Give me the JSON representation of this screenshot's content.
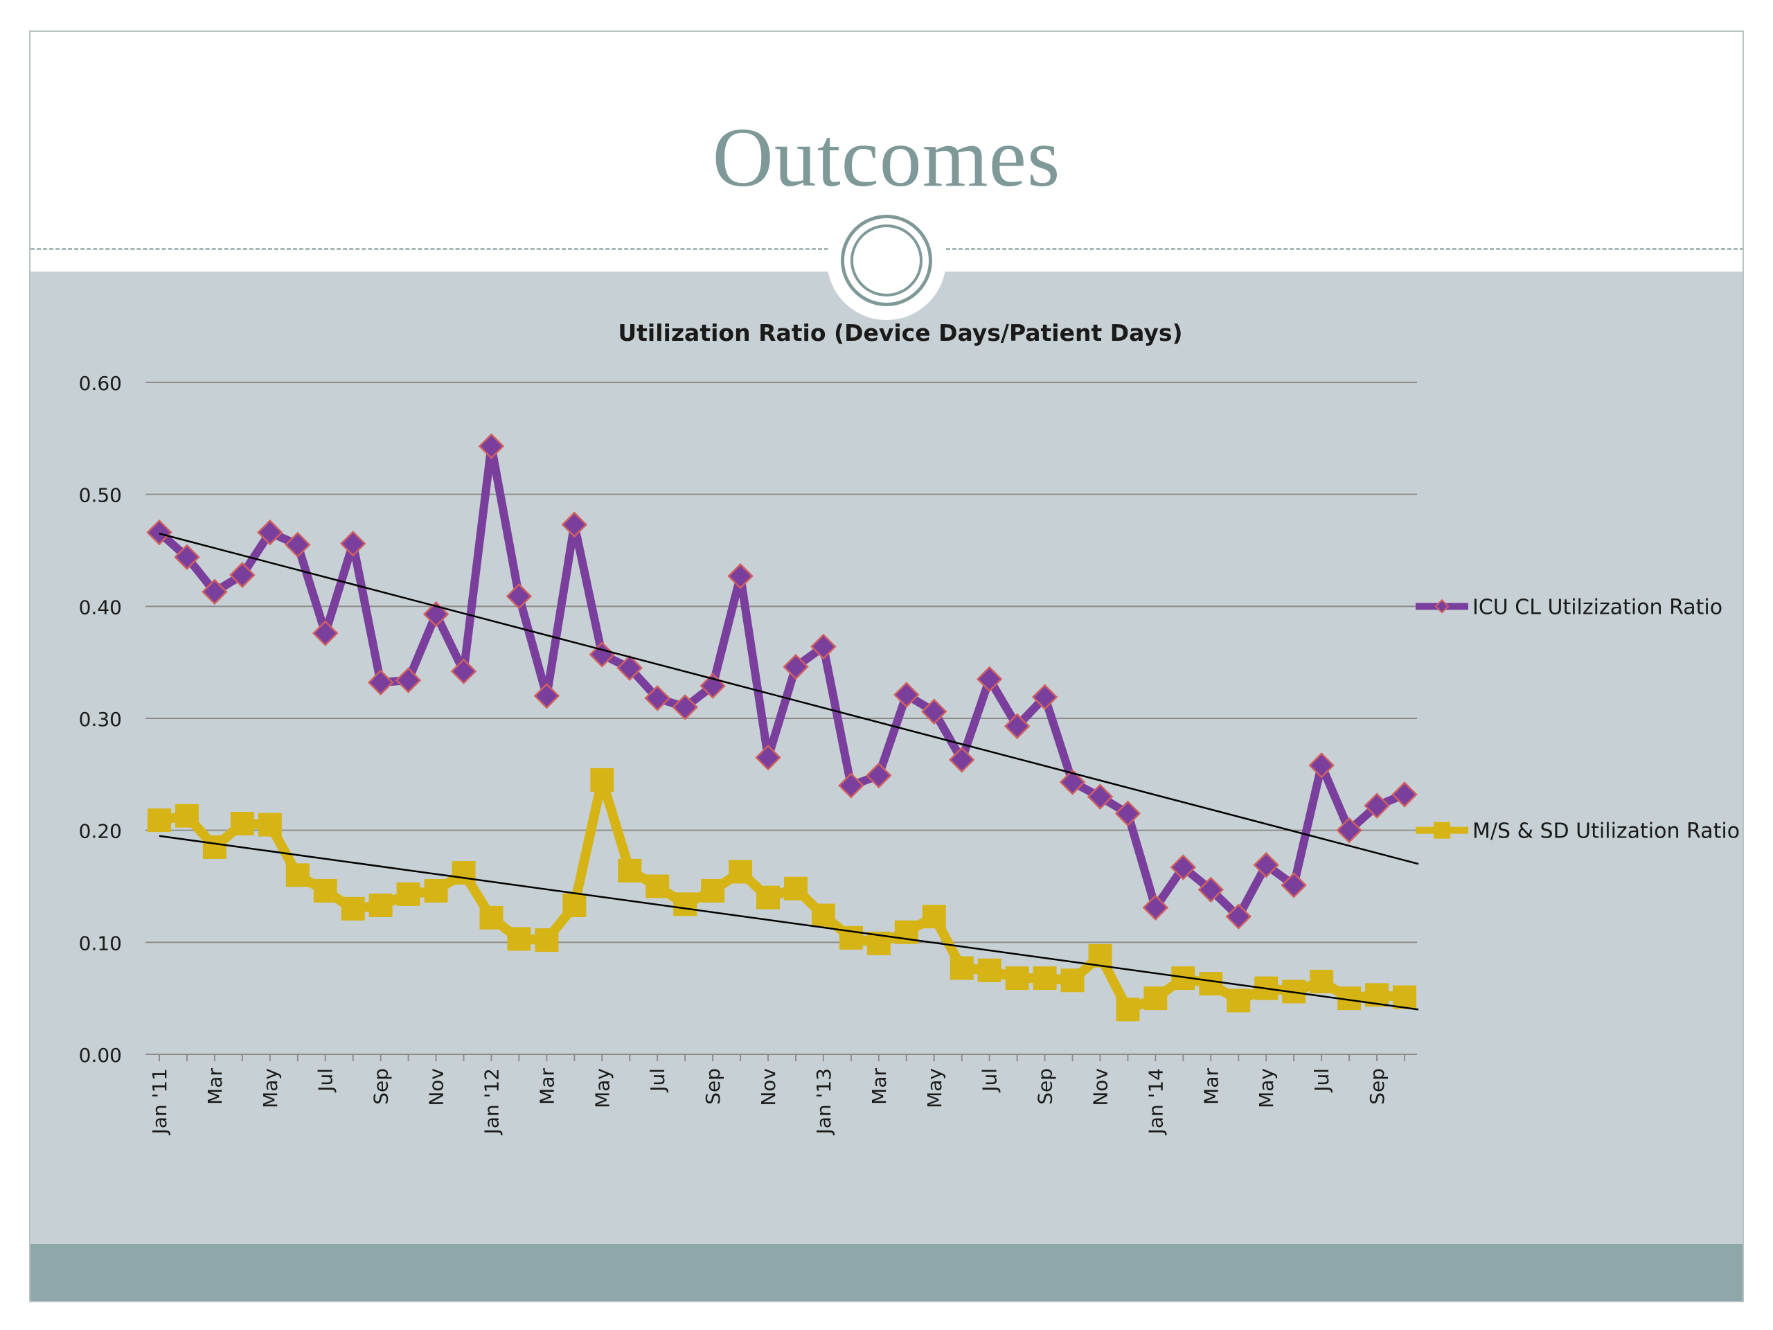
{
  "slide": {
    "title": "Outcomes"
  },
  "colors": {
    "title": "#7e9998",
    "content_bg": "#c7d1d5",
    "footer_bg": "#8ea8a9",
    "gridline": "#8c8c8c",
    "icu_line": "#7a3f9d",
    "icu_marker_edge": "#d06060",
    "ms_line": "#d6b415",
    "trend": "#000000"
  },
  "chart_data": {
    "type": "line",
    "title": "Utilization Ratio (Device Days/Patient Days)",
    "xlabel": "",
    "ylabel": "",
    "ylim": [
      0,
      0.6
    ],
    "yticks": [
      "0.00",
      "0.10",
      "0.20",
      "0.30",
      "0.40",
      "0.50",
      "0.60"
    ],
    "grid": true,
    "legend_position": "right",
    "x": [
      "Jan 2011",
      "Feb 2011",
      "Mar 2011",
      "Apr 2011",
      "May 2011",
      "Jun 2011",
      "Jul 2011",
      "Aug 2011",
      "Sep 2011",
      "Oct 2011",
      "Nov 2011",
      "Dec 2011",
      "Jan 2012",
      "Feb 2012",
      "Mar 2012",
      "Apr 2012",
      "May 2012",
      "Jun 2012",
      "Jul 2012",
      "Aug 2012",
      "Sep 2012",
      "Oct 2012",
      "Nov 2012",
      "Dec 2012",
      "Jan 2013",
      "Feb 2013",
      "Mar 2013",
      "Apr 2013",
      "May 2013",
      "Jun 2013",
      "Jul 2013",
      "Aug 2013",
      "Sep 2013",
      "Oct 2013",
      "Nov 2013",
      "Dec 2013",
      "Jan 2014",
      "Feb 2014",
      "Mar 2014",
      "Apr 2014",
      "May 2014",
      "Jun 2014",
      "Jul 2014",
      "Aug 2014",
      "Sep 2014",
      "Oct 2014"
    ],
    "xtick_labels": [
      "Jan '11",
      "",
      "Mar",
      "",
      "May",
      "",
      "Jul",
      "",
      "Sep",
      "",
      "Nov",
      "",
      "Jan '12",
      "",
      "Mar",
      "",
      "May",
      "",
      "Jul",
      "",
      "Sep",
      "",
      "Nov",
      "",
      "Jan '13",
      "",
      "Mar",
      "",
      "May",
      "",
      "Jul",
      "",
      "Sep",
      "",
      "Nov",
      "",
      "Jan '14",
      "",
      "Mar",
      "",
      "May",
      "",
      "Jul",
      "",
      "Sep",
      ""
    ],
    "series": [
      {
        "name": "ICU CL Utilzization Ratio",
        "marker": "diamond",
        "values": [
          0.466,
          0.444,
          0.413,
          0.428,
          0.466,
          0.455,
          0.376,
          0.456,
          0.332,
          0.334,
          0.393,
          0.342,
          0.543,
          0.409,
          0.32,
          0.473,
          0.357,
          0.345,
          0.318,
          0.31,
          0.329,
          0.427,
          0.265,
          0.346,
          0.364,
          0.24,
          0.249,
          0.321,
          0.306,
          0.263,
          0.335,
          0.293,
          0.319,
          0.243,
          0.23,
          0.215,
          0.131,
          0.167,
          0.147,
          0.123,
          0.169,
          0.151,
          0.258,
          0.2,
          0.222,
          0.232
        ]
      },
      {
        "name": "M/S & SD Utilization Ratio",
        "marker": "square",
        "values": [
          0.209,
          0.213,
          0.185,
          0.206,
          0.205,
          0.16,
          0.146,
          0.13,
          0.133,
          0.143,
          0.146,
          0.162,
          0.122,
          0.103,
          0.102,
          0.133,
          0.245,
          0.164,
          0.15,
          0.134,
          0.146,
          0.163,
          0.14,
          0.148,
          0.124,
          0.104,
          0.099,
          0.109,
          0.123,
          0.077,
          0.075,
          0.068,
          0.068,
          0.066,
          0.088,
          0.04,
          0.05,
          0.068,
          0.063,
          0.048,
          0.059,
          0.056,
          0.065,
          0.05,
          0.053,
          0.051
        ]
      }
    ],
    "trendlines": [
      {
        "series": "ICU CL Utilzization Ratio",
        "start": 0.465,
        "end": 0.17
      },
      {
        "series": "M/S & SD Utilization Ratio",
        "start": 0.195,
        "end": 0.04
      }
    ]
  }
}
